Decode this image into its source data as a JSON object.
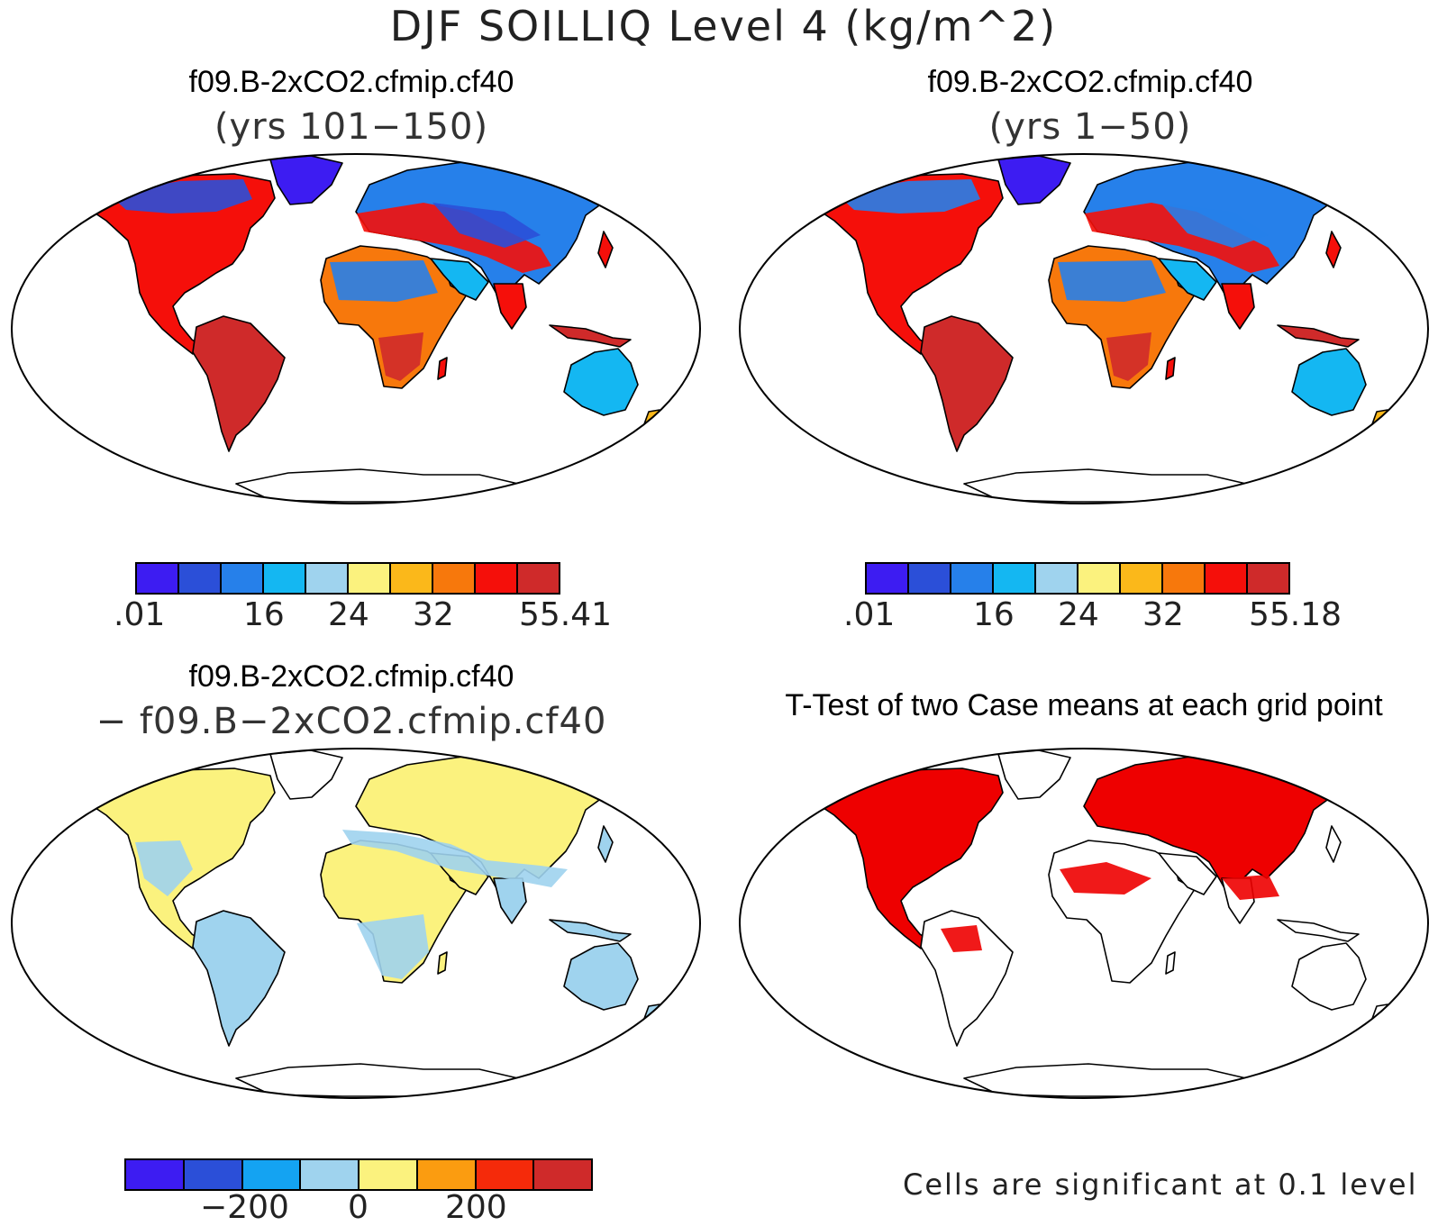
{
  "title": "DJF SOILLIQ Level 4 (kg/m^2)",
  "panels": {
    "top_left": {
      "title": "f09.B-2xCO2.cfmip.cf40",
      "subtitle": "(yrs 101−150)",
      "colorbar_ticks": [
        ".01",
        "16",
        "24",
        "32",
        "55.41"
      ]
    },
    "top_right": {
      "title": "f09.B-2xCO2.cfmip.cf40",
      "subtitle": "(yrs 1−50)",
      "colorbar_ticks": [
        ".01",
        "16",
        "24",
        "32",
        "55.18"
      ]
    },
    "bottom_left": {
      "title": "f09.B-2xCO2.cfmip.cf40",
      "subtitle": "− f09.B−2xCO2.cfmip.cf40",
      "colorbar_ticks": [
        "−200",
        "0",
        "200"
      ]
    },
    "bottom_right": {
      "title": "T-Test of two Case means at each grid point",
      "note": "Cells are significant at 0.1 level"
    }
  },
  "colors": {
    "field_scale": [
      "#3d1cf2",
      "#2b4fd8",
      "#2680ea",
      "#14b7f2",
      "#9fd3ee",
      "#fbf27e",
      "#fbb81a",
      "#f7780c",
      "#f50f0a",
      "#cf2a2a"
    ],
    "diff_scale": [
      "#3d1cf2",
      "#2b4fd8",
      "#14a3f2",
      "#9fd3ee",
      "#fbf27e",
      "#fb9c10",
      "#f52a0a",
      "#cf2a2a"
    ],
    "significant": "#ee0000"
  }
}
